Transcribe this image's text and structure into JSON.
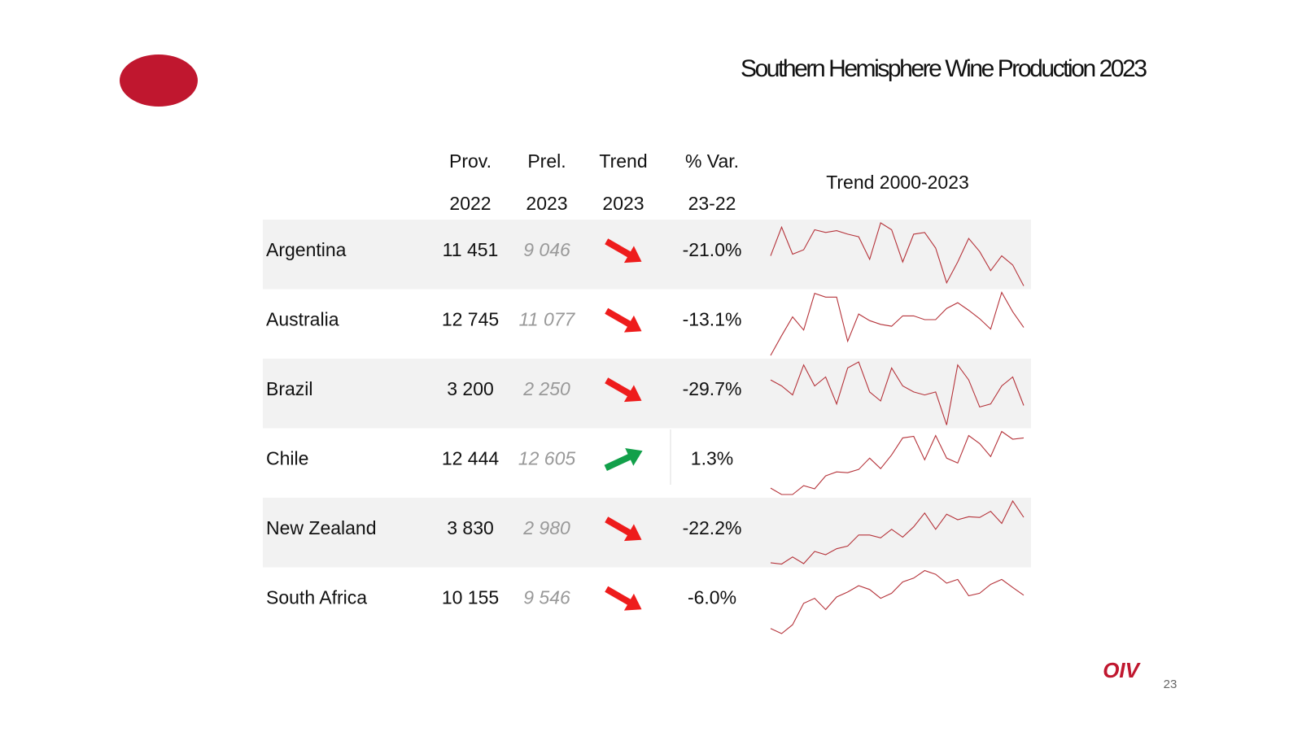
{
  "header": {
    "title": "Southern Hemisphere Wine Production 2023",
    "logo": "OIV",
    "page": "23"
  },
  "table": {
    "columns": [
      [
        "Prov.",
        "2022"
      ],
      [
        "Prel.",
        "2023"
      ],
      [
        "Trend",
        "2023"
      ],
      [
        "% Var.",
        "23-22"
      ]
    ],
    "sparkline_title": "Trend 2000-2023",
    "rows": [
      {
        "country": "Argentina",
        "prov": "11 451",
        "prel": "9 046",
        "var": "-21.0%",
        "series": [
          12500,
          15800,
          12700,
          13200,
          15500,
          15200,
          15400,
          15000,
          14700,
          12100,
          16300,
          15500,
          11800,
          15000,
          15200,
          13400,
          9400,
          11800,
          14500,
          13000,
          10800,
          12500,
          11451,
          9046
        ]
      },
      {
        "country": "Australia",
        "prov": "12 745",
        "prel": "11 077",
        "var": "-13.1%",
        "series": [
          8100,
          10200,
          12200,
          10800,
          14700,
          14300,
          14300,
          9600,
          12500,
          11800,
          11400,
          11200,
          12300,
          12300,
          11900,
          11900,
          13100,
          13700,
          12900,
          12000,
          10900,
          14800,
          12745,
          11077
        ]
      },
      {
        "country": "Brazil",
        "prov": "3 200",
        "prel": "2 250",
        "var": "-29.7%",
        "series": [
          3100,
          2900,
          2600,
          3600,
          2900,
          3200,
          2300,
          3500,
          3700,
          2700,
          2400,
          3500,
          2900,
          2700,
          2600,
          2700,
          1600,
          3600,
          3100,
          2200,
          2300,
          2900,
          3200,
          2250
        ]
      },
      {
        "country": "Chile",
        "prov": "12 444",
        "prel": "12 605",
        "var": "1.3%",
        "series": [
          6400,
          5600,
          5600,
          6700,
          6300,
          7900,
          8400,
          8300,
          8700,
          10100,
          8800,
          10500,
          12600,
          12800,
          9900,
          12900,
          10100,
          9500,
          12900,
          11900,
          10300,
          13400,
          12444,
          12605
        ]
      },
      {
        "country": "New Zealand",
        "prov": "3 830",
        "prel": "2 980",
        "var": "-22.2%",
        "series": [
          600,
          530,
          900,
          550,
          1190,
          1020,
          1330,
          1470,
          2050,
          2050,
          1900,
          2350,
          1940,
          2480,
          3200,
          2350,
          3140,
          2850,
          3010,
          2970,
          3290,
          2660,
          3830,
          2980
        ]
      },
      {
        "country": "South Africa",
        "prov": "10 155",
        "prel": "9 546",
        "var": "-6.0%",
        "series": [
          6900,
          6500,
          7200,
          8900,
          9300,
          8400,
          9400,
          9800,
          10300,
          10000,
          9300,
          9700,
          10600,
          10900,
          11500,
          11200,
          10500,
          10800,
          9500,
          9700,
          10400,
          10800,
          10155,
          9546
        ]
      }
    ]
  }
}
